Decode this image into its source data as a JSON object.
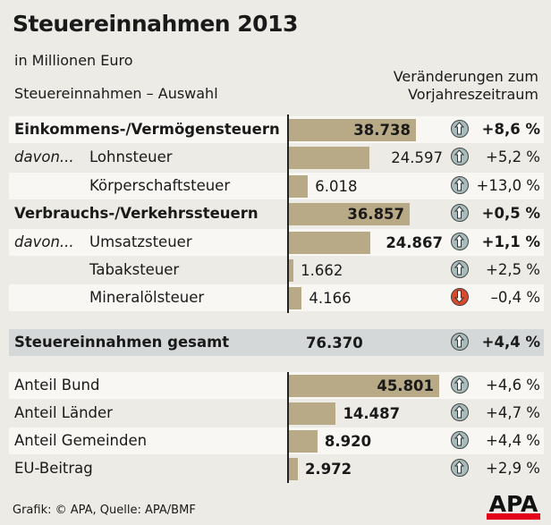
{
  "title": "Steuereinnahmen 2013",
  "subtitle": "in Millionen Euro",
  "left_header": "Steuereinnahmen – Auswahl",
  "right_header": "Veränderungen zum Vorjahreszeitraum",
  "footer": "Grafik: © APA, Quelle: APA/BMF",
  "logo": "APA",
  "colors": {
    "bar": "#b8a987",
    "up": "#a9bcbc",
    "down": "#d84a2c",
    "total_bg": "#d5d8d8"
  },
  "chart_data": {
    "type": "bar",
    "title": "Steuereinnahmen 2013",
    "unit": "Millionen Euro",
    "rows": [
      {
        "prefix": "",
        "label": "Einkommens-/Vermögensteuern",
        "value": 38738,
        "value_text": "38.738",
        "change": "+8,6 %",
        "direction": "up",
        "bold": true,
        "value_bold": true
      },
      {
        "prefix": "davon...",
        "label": "Lohnsteuer",
        "value": 24597,
        "value_text": "24.597",
        "change": "+5,2 %",
        "direction": "up",
        "bold": false,
        "value_bold": false
      },
      {
        "prefix": "",
        "label": "Körperschaftsteuer",
        "value": 6018,
        "value_text": "6.018",
        "change": "+13,0 %",
        "direction": "up",
        "bold": false,
        "value_bold": false
      },
      {
        "prefix": "",
        "label": "Verbrauchs-/Verkehrssteuern",
        "value": 36857,
        "value_text": "36.857",
        "change": "+0,5 %",
        "direction": "up",
        "bold": true,
        "value_bold": true
      },
      {
        "prefix": "davon...",
        "label": "Umsatzsteuer",
        "value": 24867,
        "value_text": "24.867",
        "change": "+1,1 %",
        "direction": "up",
        "bold": true,
        "value_bold": true,
        "label_normal": true
      },
      {
        "prefix": "",
        "label": "Tabaksteuer",
        "value": 1662,
        "value_text": "1.662",
        "change": "+2,5 %",
        "direction": "up",
        "bold": false,
        "value_bold": false
      },
      {
        "prefix": "",
        "label": "Mineralölsteuer",
        "value": 4166,
        "value_text": "4.166",
        "change": "–0,4 %",
        "direction": "down",
        "bold": false,
        "value_bold": false
      }
    ],
    "total": {
      "label": "Steuereinnahmen gesamt",
      "value": 76370,
      "value_text": "76.370",
      "change": "+4,4 %",
      "direction": "up"
    },
    "shares": [
      {
        "label": "Anteil Bund",
        "value": 45801,
        "value_text": "45.801",
        "change": "+4,6 %",
        "direction": "up"
      },
      {
        "label": "Anteil Länder",
        "value": 14487,
        "value_text": "14.487",
        "change": "+4,7 %",
        "direction": "up"
      },
      {
        "label": "Anteil Gemeinden",
        "value": 8920,
        "value_text": "8.920",
        "change": "+4,4 %",
        "direction": "up"
      },
      {
        "label": "EU-Beitrag",
        "value": 2972,
        "value_text": "2.972",
        "change": "+2,9 %",
        "direction": "up"
      }
    ]
  }
}
